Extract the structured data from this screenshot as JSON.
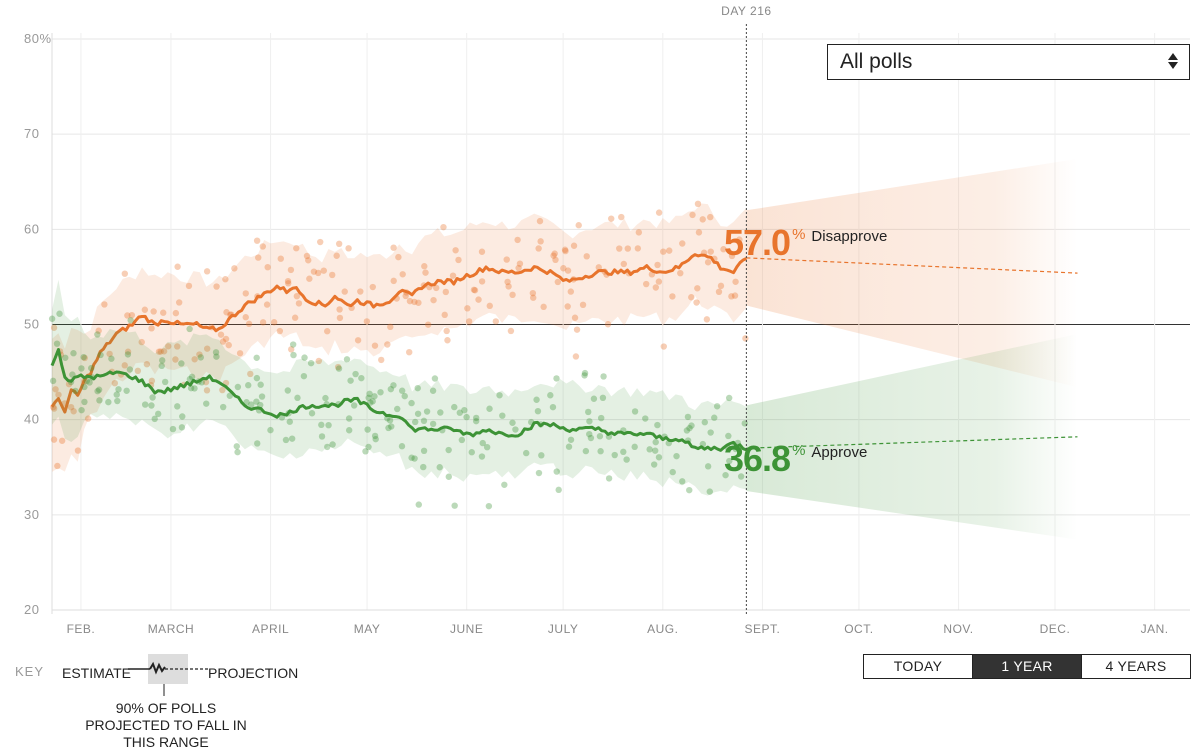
{
  "chart_data": {
    "type": "line",
    "title": "",
    "ylim": [
      20,
      80
    ],
    "y_ticks": [
      "80%",
      "70",
      "60",
      "50",
      "40",
      "30",
      "20"
    ],
    "x_ticks": [
      "FEB.",
      "MARCH",
      "APRIL",
      "MAY",
      "JUNE",
      "JULY",
      "AUG.",
      "SEPT.",
      "OCT.",
      "NOV.",
      "DEC.",
      "JAN."
    ],
    "marker_label": "DAY 216",
    "marker_day": 216,
    "x_range_days": [
      0,
      354
    ],
    "series": [
      {
        "name": "Disapprove",
        "color": "#e8742c",
        "final_value": 57.0,
        "band_halfwidth": 5,
        "days": [
          0,
          2,
          4,
          6,
          8,
          10,
          12,
          15,
          20,
          25,
          28,
          32,
          35,
          40,
          45,
          48,
          52,
          55,
          60,
          65,
          70,
          73,
          75,
          80,
          85,
          88,
          92,
          95,
          100,
          105,
          108,
          112,
          115,
          120,
          125,
          128,
          132,
          135,
          140,
          145,
          150,
          155,
          160,
          165,
          170,
          175,
          180,
          185,
          190,
          195,
          200,
          205,
          208,
          212,
          216
        ],
        "values": [
          41.5,
          42,
          41,
          43,
          42.5,
          44,
          45,
          47,
          49,
          50,
          51,
          50,
          50.5,
          50,
          50,
          49.5,
          49.5,
          50.5,
          52,
          53,
          54,
          53.5,
          54,
          52.5,
          52,
          53,
          52,
          52.5,
          52,
          52.5,
          53.5,
          53,
          54,
          54.5,
          54.5,
          55,
          55.5,
          56,
          55.5,
          55.5,
          56,
          55.5,
          54.5,
          55,
          55.5,
          55.5,
          55.5,
          56,
          55.5,
          56,
          57.5,
          57,
          56,
          55.5,
          57
        ],
        "projection_end": 55.4
      },
      {
        "name": "Approve",
        "color": "#3d9336",
        "final_value": 36.8,
        "band_halfwidth": 4.5,
        "days": [
          0,
          2,
          4,
          6,
          8,
          10,
          12,
          15,
          20,
          25,
          28,
          32,
          35,
          40,
          45,
          48,
          52,
          55,
          60,
          65,
          70,
          73,
          75,
          80,
          85,
          88,
          92,
          95,
          100,
          105,
          108,
          112,
          115,
          120,
          125,
          128,
          132,
          135,
          140,
          145,
          150,
          155,
          160,
          165,
          170,
          175,
          180,
          185,
          190,
          195,
          200,
          205,
          208,
          212,
          216
        ],
        "values": [
          45.5,
          47.5,
          44.5,
          44,
          44.5,
          44.5,
          44.5,
          44.5,
          45,
          44.5,
          44,
          43,
          43,
          43.5,
          44,
          44.5,
          44,
          43,
          41.5,
          41,
          40.5,
          40.5,
          41,
          41.5,
          41.5,
          41.5,
          42,
          42,
          41,
          40.5,
          40.5,
          39,
          39,
          39,
          39,
          38.5,
          38.5,
          39,
          38.5,
          38.5,
          39.5,
          39.5,
          39,
          39,
          39,
          38.5,
          38.5,
          38.5,
          38,
          38,
          37,
          37,
          37,
          37.5,
          37
        ],
        "projection_end": 38.2
      }
    ]
  },
  "poll_filter": {
    "selected": "All polls"
  },
  "readouts": {
    "disapprove": {
      "value": "57.0",
      "unit": "%",
      "label": "Disapprove"
    },
    "approve": {
      "value": "36.8",
      "unit": "%",
      "label": "Approve"
    }
  },
  "range_buttons": [
    "TODAY",
    "1 YEAR",
    "4 YEARS"
  ],
  "active_range": "1 YEAR",
  "key": {
    "title": "KEY",
    "estimate": "ESTIMATE",
    "projection": "PROJECTION",
    "note": "90% OF POLLS PROJECTED TO FALL IN THIS RANGE"
  }
}
